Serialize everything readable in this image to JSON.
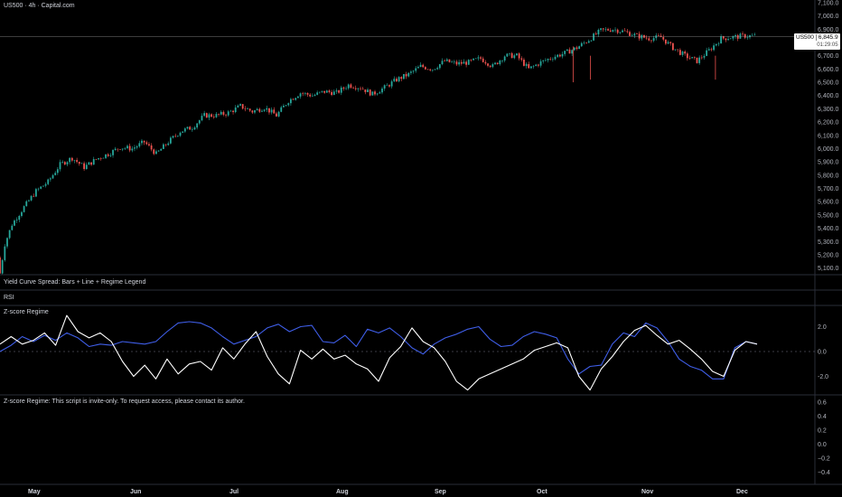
{
  "header": {
    "symbol_title": "US500 · 4h · Capital.com"
  },
  "price_label": {
    "symbol": "US500",
    "price": "6,845.9",
    "countdown": "01:29:05"
  },
  "panes": {
    "yield": {
      "title": "Yield Curve Spread: Bars + Line + Regime Legend"
    },
    "rsi": {
      "title": "RSI"
    },
    "zscore": {
      "title": "Z-score Regime"
    },
    "invite": {
      "title": "Z-score Regime: This script is invite-only. To request access, please contact its author."
    }
  },
  "colors": {
    "up": "#26a69a",
    "down": "#ef5350",
    "blue_line": "#3f5ee8",
    "white_line": "#ffffff",
    "price_line": "#aaaaaa"
  },
  "chart_data": [
    {
      "type": "candlestick",
      "title": "US500 · 4h · Capital.com",
      "ylim": [
        5050,
        7120
      ],
      "y_ticks": [
        "7,100.0",
        "7,000.0",
        "6,900.0",
        "6,800.0",
        "6,700.0",
        "6,600.0",
        "6,500.0",
        "6,400.0",
        "6,300.0",
        "6,200.0",
        "6,100.0",
        "6,000.0",
        "5,900.0",
        "5,800.0",
        "5,700.0",
        "5,600.0",
        "5,500.0",
        "5,400.0",
        "5,300.0",
        "5,200.0",
        "5,100.0"
      ],
      "x_labels": [
        "May",
        "Jun",
        "Jul",
        "Aug",
        "Sep",
        "Oct",
        "Nov",
        "Dec"
      ],
      "last_price": 6845.9,
      "close_path": {
        "x": [
          "Apr 29",
          "May 2",
          "May 6",
          "May 9",
          "May 13",
          "May 16",
          "May 20",
          "May 23",
          "May 27",
          "May 30",
          "Jun 3",
          "Jun 6",
          "Jun 10",
          "Jun 13",
          "Jun 17",
          "Jun 20",
          "Jun 24",
          "Jun 27",
          "Jul 1",
          "Jul 4",
          "Jul 8",
          "Jul 11",
          "Jul 15",
          "Jul 18",
          "Jul 22",
          "Jul 25",
          "Jul 29",
          "Aug 1",
          "Aug 5",
          "Aug 8",
          "Aug 12",
          "Aug 15",
          "Aug 19",
          "Aug 22",
          "Aug 26",
          "Aug 29",
          "Sep 2",
          "Sep 5",
          "Sep 9",
          "Sep 12",
          "Sep 16",
          "Sep 19",
          "Sep 23",
          "Sep 26",
          "Sep 30",
          "Oct 3",
          "Oct 7",
          "Oct 10",
          "Oct 14",
          "Oct 17",
          "Oct 21",
          "Oct 24",
          "Oct 28",
          "Oct 31",
          "Nov 4",
          "Nov 7",
          "Nov 11",
          "Nov 14",
          "Nov 18",
          "Nov 21",
          "Nov 25",
          "Nov 28",
          "Dec 2",
          "Dec 5"
        ],
        "y": [
          5180,
          5430,
          5560,
          5680,
          5750,
          5880,
          5930,
          5860,
          5920,
          5960,
          6010,
          6000,
          6050,
          5960,
          6050,
          6130,
          6160,
          6250,
          6250,
          6270,
          6320,
          6280,
          6310,
          6250,
          6360,
          6420,
          6400,
          6430,
          6420,
          6480,
          6460,
          6410,
          6460,
          6520,
          6560,
          6620,
          6600,
          6660,
          6640,
          6650,
          6680,
          6620,
          6700,
          6700,
          6600,
          6650,
          6690,
          6720,
          6760,
          6820,
          6890,
          6900,
          6880,
          6850,
          6830,
          6840,
          6760,
          6700,
          6660,
          6740,
          6830,
          6840,
          6850,
          6846
        ]
      }
    },
    {
      "type": "line",
      "title": "Z-score Regime",
      "ylim": [
        -3.2,
        3.2
      ],
      "y_ticks": [
        "2.0",
        "0.0",
        "-2.0"
      ],
      "zero_line": 0.0,
      "series": [
        {
          "name": "",
          "color": "#3f5ee8",
          "values": [
            0.0,
            0.5,
            1.2,
            0.8,
            1.3,
            0.9,
            1.5,
            1.1,
            0.4,
            0.6,
            0.5,
            0.8,
            0.7,
            0.6,
            0.8,
            1.6,
            2.3,
            2.4,
            2.3,
            1.9,
            1.2,
            0.6,
            0.9,
            1.2,
            1.9,
            2.2,
            1.6,
            2.0,
            2.1,
            0.8,
            0.7,
            1.3,
            0.4,
            1.8,
            1.5,
            1.9,
            1.2,
            0.3,
            -0.2,
            0.6,
            1.1,
            1.4,
            1.8,
            2.0,
            1.0,
            0.4,
            0.5,
            1.2,
            1.6,
            1.4,
            1.1,
            -0.6,
            -1.8,
            -1.2,
            -1.1,
            0.6,
            1.5,
            1.2,
            2.3,
            1.9,
            0.8,
            -0.6,
            -1.2,
            -1.5,
            -2.2,
            -2.2,
            0.3,
            0.8,
            0.6
          ]
        },
        {
          "name": "",
          "color": "#ffffff",
          "values": [
            0.6,
            1.2,
            0.6,
            0.9,
            1.5,
            0.5,
            2.9,
            1.6,
            1.1,
            1.5,
            0.8,
            -0.8,
            -2.0,
            -1.1,
            -2.2,
            -0.6,
            -1.8,
            -1.0,
            -0.8,
            -1.5,
            0.3,
            -0.6,
            0.6,
            1.6,
            -0.4,
            -1.8,
            -2.6,
            0.1,
            -0.6,
            0.2,
            -0.6,
            -0.3,
            -1.0,
            -1.4,
            -2.4,
            -0.5,
            0.4,
            1.9,
            0.8,
            0.3,
            -0.8,
            -2.4,
            -3.1,
            -2.2,
            -1.8,
            -1.4,
            -1.0,
            -0.6,
            0.1,
            0.4,
            0.7,
            0.3,
            -2.0,
            -3.1,
            -1.4,
            -0.4,
            0.8,
            1.7,
            2.1,
            1.3,
            0.6,
            0.9,
            0.2,
            -0.6,
            -1.6,
            -2.0,
            0.1,
            0.8,
            0.6
          ]
        }
      ]
    },
    {
      "type": "line",
      "title": "Z-score Regime: This script is invite-only. To request access, please contact its author.",
      "ylim": [
        -0.5,
        0.65
      ],
      "y_ticks": [
        "0.6",
        "0.4",
        "0.2",
        "0.0",
        "−0.2",
        "−0.4"
      ],
      "series": []
    }
  ]
}
